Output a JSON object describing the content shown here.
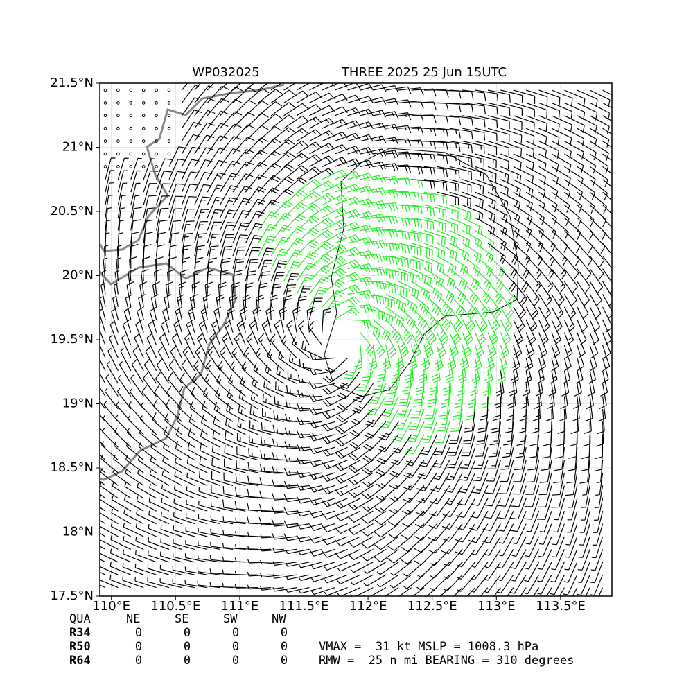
{
  "header": {
    "left": "WP032025",
    "right": "THREE 2025 25 Jun 15UTC"
  },
  "map": {
    "xlim": [
      109.91,
      113.9
    ],
    "ylim": [
      17.5,
      21.5
    ],
    "xticks": [
      {
        "value": 110,
        "label": "110°E"
      },
      {
        "value": 110.5,
        "label": "110.5°E"
      },
      {
        "value": 111,
        "label": "111°E"
      },
      {
        "value": 111.5,
        "label": "111.5°E"
      },
      {
        "value": 112,
        "label": "112°E"
      },
      {
        "value": 112.5,
        "label": "112.5°E"
      },
      {
        "value": 113,
        "label": "113°E"
      },
      {
        "value": 113.5,
        "label": "113.5°E"
      }
    ],
    "yticks": [
      {
        "value": 17.5,
        "label": "17.5°N"
      },
      {
        "value": 18,
        "label": "18°N"
      },
      {
        "value": 18.5,
        "label": "18.5°N"
      },
      {
        "value": 19,
        "label": "19°N"
      },
      {
        "value": 19.5,
        "label": "19.5°N"
      },
      {
        "value": 20,
        "label": "20°N"
      },
      {
        "value": 20.5,
        "label": "20.5°N"
      },
      {
        "value": 21,
        "label": "21°N"
      },
      {
        "value": 21.5,
        "label": "21.5°N"
      }
    ],
    "grid": true
  },
  "table": {
    "columns": [
      "QUA",
      "NE",
      "SE",
      "SW",
      "NW"
    ],
    "rows": [
      [
        "R34",
        0,
        0,
        0,
        0
      ],
      [
        "R50",
        0,
        0,
        0,
        0
      ],
      [
        "R64",
        0,
        0,
        0,
        0
      ]
    ]
  },
  "info": [
    "VMAX =  31 kt MSLP = 1008.3 hPa",
    "RMW =  25 n mi BEARING = 310 degrees"
  ]
}
